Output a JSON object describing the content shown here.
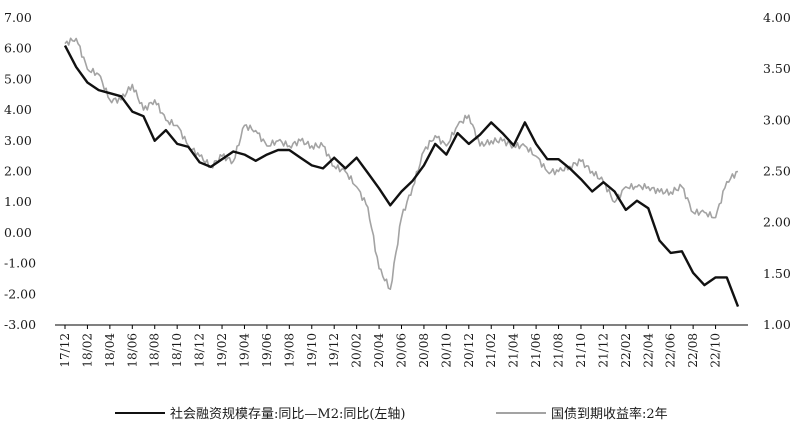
{
  "chart_data": {
    "type": "line",
    "x_range": [
      "17/12",
      "22/12"
    ],
    "x_ticks": [
      "17/12",
      "18/02",
      "18/04",
      "18/06",
      "18/08",
      "18/10",
      "18/12",
      "19/02",
      "19/04",
      "19/06",
      "19/08",
      "19/10",
      "19/12",
      "20/02",
      "20/04",
      "20/06",
      "20/08",
      "20/10",
      "20/12",
      "21/02",
      "21/04",
      "21/06",
      "21/08",
      "21/10",
      "21/12",
      "22/02",
      "22/04",
      "22/06",
      "22/08",
      "22/10"
    ],
    "y_left": {
      "min": -3.0,
      "max": 7.0,
      "ticks": [
        "7.00",
        "6.00",
        "5.00",
        "4.00",
        "3.00",
        "2.00",
        "1.00",
        "0.00",
        "-1.00",
        "-2.00",
        "-3.00"
      ]
    },
    "y_right": {
      "min": 1.0,
      "max": 4.0,
      "ticks": [
        "4.00",
        "3.50",
        "3.00",
        "2.50",
        "2.00",
        "1.50",
        "1.00"
      ]
    },
    "grid": false,
    "legend_position": "bottom",
    "series": [
      {
        "name": "社会融资规模存量:同比—M2:同比(左轴)",
        "axis": "left",
        "color": "#111111",
        "points": [
          [
            "2017-12",
            6.1
          ],
          [
            "2018-01",
            5.4
          ],
          [
            "2018-02",
            4.9
          ],
          [
            "2018-03",
            4.65
          ],
          [
            "2018-04",
            4.55
          ],
          [
            "2018-05",
            4.45
          ],
          [
            "2018-06",
            3.95
          ],
          [
            "2018-07",
            3.8
          ],
          [
            "2018-08",
            3.0
          ],
          [
            "2018-09",
            3.35
          ],
          [
            "2018-10",
            2.9
          ],
          [
            "2018-11",
            2.8
          ],
          [
            "2018-12",
            2.3
          ],
          [
            "2019-01",
            2.15
          ],
          [
            "2019-02",
            2.4
          ],
          [
            "2019-03",
            2.65
          ],
          [
            "2019-04",
            2.55
          ],
          [
            "2019-05",
            2.35
          ],
          [
            "2019-06",
            2.55
          ],
          [
            "2019-07",
            2.7
          ],
          [
            "2019-08",
            2.7
          ],
          [
            "2019-09",
            2.45
          ],
          [
            "2019-10",
            2.2
          ],
          [
            "2019-11",
            2.1
          ],
          [
            "2019-12",
            2.45
          ],
          [
            "2020-01",
            2.1
          ],
          [
            "2020-02",
            2.45
          ],
          [
            "2020-03",
            1.95
          ],
          [
            "2020-04",
            1.45
          ],
          [
            "2020-05",
            0.9
          ],
          [
            "2020-06",
            1.35
          ],
          [
            "2020-07",
            1.7
          ],
          [
            "2020-08",
            2.2
          ],
          [
            "2020-09",
            2.9
          ],
          [
            "2020-10",
            2.55
          ],
          [
            "2020-11",
            3.25
          ],
          [
            "2020-12",
            2.9
          ],
          [
            "2021-01",
            3.2
          ],
          [
            "2021-02",
            3.6
          ],
          [
            "2021-03",
            3.25
          ],
          [
            "2021-04",
            2.85
          ],
          [
            "2021-05",
            3.6
          ],
          [
            "2021-06",
            2.9
          ],
          [
            "2021-07",
            2.4
          ],
          [
            "2021-08",
            2.4
          ],
          [
            "2021-09",
            2.1
          ],
          [
            "2021-10",
            1.75
          ],
          [
            "2021-11",
            1.35
          ],
          [
            "2021-12",
            1.65
          ],
          [
            "2022-01",
            1.35
          ],
          [
            "2022-02",
            0.75
          ],
          [
            "2022-03",
            1.05
          ],
          [
            "2022-04",
            0.8
          ],
          [
            "2022-05",
            -0.25
          ],
          [
            "2022-06",
            -0.65
          ],
          [
            "2022-07",
            -0.6
          ],
          [
            "2022-08",
            -1.3
          ],
          [
            "2022-09",
            -1.7
          ],
          [
            "2022-10",
            -1.45
          ],
          [
            "2022-11",
            -1.45
          ],
          [
            "2022-12",
            -2.4
          ]
        ]
      },
      {
        "name": "国债到期收益率:2年",
        "axis": "right",
        "color": "#a3a3a3",
        "points": [
          [
            "2017-12",
            3.75
          ],
          [
            "2018-01",
            3.8
          ],
          [
            "2018-02",
            3.5
          ],
          [
            "2018-03",
            3.45
          ],
          [
            "2018-04",
            3.2
          ],
          [
            "2018-05",
            3.2
          ],
          [
            "2018-06",
            3.35
          ],
          [
            "2018-07",
            3.1
          ],
          [
            "2018-08",
            3.2
          ],
          [
            "2018-09",
            3.0
          ],
          [
            "2018-10",
            2.95
          ],
          [
            "2018-11",
            2.75
          ],
          [
            "2018-12",
            2.65
          ],
          [
            "2019-01",
            2.55
          ],
          [
            "2019-02",
            2.65
          ],
          [
            "2019-03",
            2.6
          ],
          [
            "2019-04",
            2.95
          ],
          [
            "2019-05",
            2.9
          ],
          [
            "2019-06",
            2.75
          ],
          [
            "2019-07",
            2.8
          ],
          [
            "2019-08",
            2.75
          ],
          [
            "2019-09",
            2.8
          ],
          [
            "2019-10",
            2.75
          ],
          [
            "2019-11",
            2.75
          ],
          [
            "2019-12",
            2.55
          ],
          [
            "2020-01",
            2.5
          ],
          [
            "2020-02",
            2.35
          ],
          [
            "2020-03",
            2.15
          ],
          [
            "2020-04",
            1.55
          ],
          [
            "2020-05",
            1.35
          ],
          [
            "2020-06",
            2.05
          ],
          [
            "2020-07",
            2.35
          ],
          [
            "2020-08",
            2.7
          ],
          [
            "2020-09",
            2.85
          ],
          [
            "2020-10",
            2.75
          ],
          [
            "2020-11",
            2.95
          ],
          [
            "2020-12",
            3.05
          ],
          [
            "2021-01",
            2.75
          ],
          [
            "2021-02",
            2.8
          ],
          [
            "2021-03",
            2.8
          ],
          [
            "2021-04",
            2.75
          ],
          [
            "2021-05",
            2.75
          ],
          [
            "2021-06",
            2.65
          ],
          [
            "2021-07",
            2.5
          ],
          [
            "2021-08",
            2.5
          ],
          [
            "2021-09",
            2.55
          ],
          [
            "2021-10",
            2.6
          ],
          [
            "2021-11",
            2.5
          ],
          [
            "2021-12",
            2.4
          ],
          [
            "2022-01",
            2.2
          ],
          [
            "2022-02",
            2.35
          ],
          [
            "2022-03",
            2.35
          ],
          [
            "2022-04",
            2.35
          ],
          [
            "2022-05",
            2.3
          ],
          [
            "2022-06",
            2.3
          ],
          [
            "2022-07",
            2.35
          ],
          [
            "2022-08",
            2.1
          ],
          [
            "2022-09",
            2.1
          ],
          [
            "2022-10",
            2.05
          ],
          [
            "2022-11",
            2.4
          ],
          [
            "2022-12",
            2.5
          ]
        ]
      }
    ]
  }
}
